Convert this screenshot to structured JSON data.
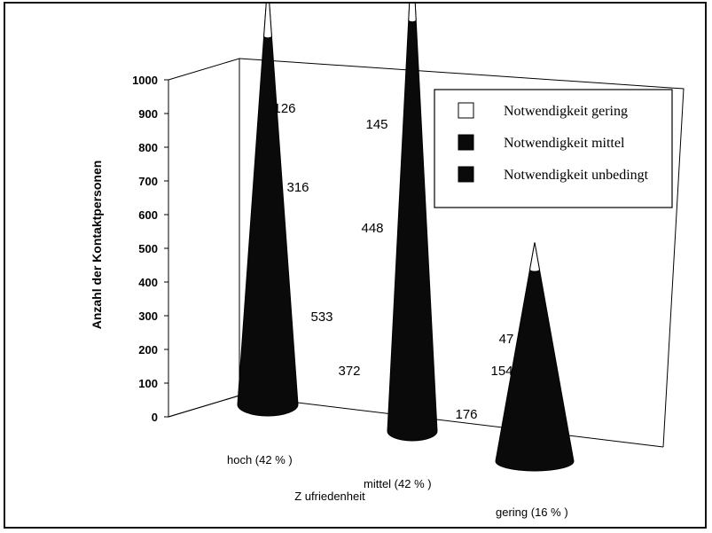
{
  "chart_data": {
    "type": "bar",
    "style": "3d-cone-stacked",
    "categories": [
      "hoch (42 % )",
      "mittel (42 % )",
      "gering (16 % )"
    ],
    "series": [
      {
        "name": "Notwendigkeit unbedingt",
        "values": [
          533,
          372,
          176
        ],
        "color": "#0a0a0a"
      },
      {
        "name": "Notwendigkeit mittel",
        "values": [
          316,
          448,
          154
        ],
        "color": "#0a0a0a"
      },
      {
        "name": "Notwendigkeit gering",
        "values": [
          126,
          145,
          47
        ],
        "color": "#ffffff"
      }
    ],
    "legend_order": [
      "Notwendigkeit gering",
      "Notwendigkeit mittel",
      "Notwendigkeit unbedingt"
    ],
    "xlabel": "Z ufriedenheit",
    "ylabel": "Anzahl der Kontaktpersonen",
    "ylim": [
      0,
      1000
    ],
    "yticks": [
      0,
      100,
      200,
      300,
      400,
      500,
      600,
      700,
      800,
      900,
      1000
    ],
    "grid": false,
    "legend_position": "top-right"
  }
}
